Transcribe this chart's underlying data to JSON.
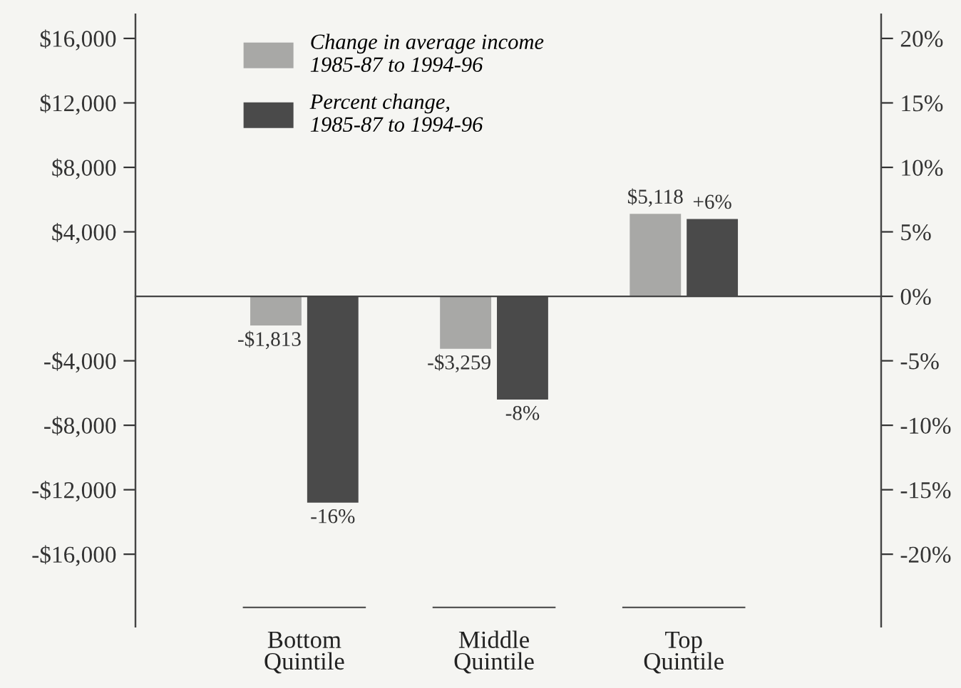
{
  "chart_data": {
    "type": "bar",
    "categories": [
      "Bottom\nQuintile",
      "Middle\nQuintile",
      "Top\nQuintile"
    ],
    "series": [
      {
        "name": "Change in average income\n1985-87 to 1994-96",
        "color": "#a8a8a6",
        "values": [
          -1813,
          -3259,
          5118
        ],
        "value_labels": [
          "-$1,813",
          "-$3,259",
          "$5,118"
        ]
      },
      {
        "name": "Percent change,\n1985-87 to 1994-96",
        "color": "#4a4a4a",
        "axis": "y2",
        "values": [
          -16,
          -8,
          6
        ],
        "value_labels": [
          "-16%",
          "-8%",
          "+6%"
        ]
      }
    ],
    "ylim": [
      -20500,
      17500
    ],
    "yticks": [
      {
        "value": 16000,
        "label": "$16,000"
      },
      {
        "value": 12000,
        "label": "$12,000"
      },
      {
        "value": 8000,
        "label": "$8,000"
      },
      {
        "value": 4000,
        "label": "$4,000"
      },
      {
        "value": -4000,
        "label": "-$4,000"
      },
      {
        "value": -8000,
        "label": "-$8,000"
      },
      {
        "value": -12000,
        "label": "-$12,000"
      },
      {
        "value": -16000,
        "label": "-$16,000"
      }
    ],
    "y2lim": [
      -25.625,
      21.875
    ],
    "y2ticks": [
      {
        "value": 20,
        "label": "20%"
      },
      {
        "value": 15,
        "label": "15%"
      },
      {
        "value": 10,
        "label": "10%"
      },
      {
        "value": 5,
        "label": "5%"
      },
      {
        "value": 0,
        "label": "0%"
      },
      {
        "value": -5,
        "label": "-5%"
      },
      {
        "value": -10,
        "label": "-10%"
      },
      {
        "value": -15,
        "label": "-15%"
      },
      {
        "value": -20,
        "label": "-20%"
      }
    ],
    "legend": "top left"
  }
}
